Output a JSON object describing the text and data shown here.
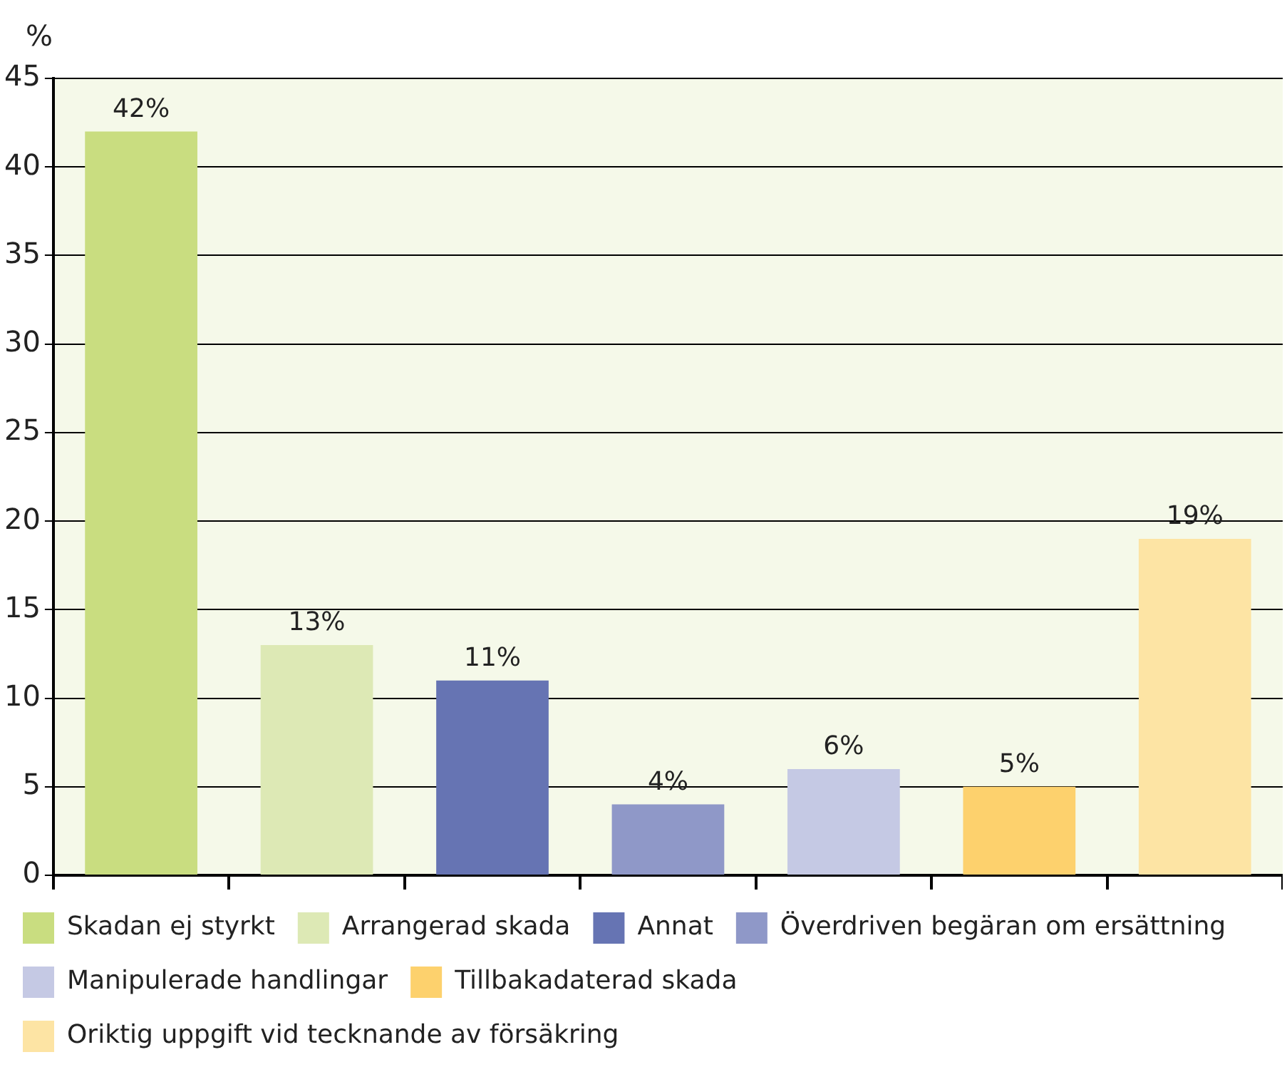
{
  "chart_data": {
    "type": "bar",
    "ylabel": "%",
    "categories": [
      null,
      null,
      null,
      null,
      null,
      null,
      null
    ],
    "series": [
      {
        "name": "Skadan ej styrkt",
        "color": "#c9dd80",
        "values": [
          42,
          null,
          null,
          null,
          null,
          null,
          null
        ],
        "value_labels": [
          "42%",
          null,
          null,
          null,
          null,
          null,
          null
        ]
      },
      {
        "name": "Arrangerad skada",
        "color": "#dde9b5",
        "values": [
          null,
          13,
          null,
          null,
          null,
          null,
          null
        ],
        "value_labels": [
          null,
          "13%",
          null,
          null,
          null,
          null,
          null
        ]
      },
      {
        "name": "Annat",
        "color": "#6674b3",
        "values": [
          null,
          null,
          11,
          null,
          null,
          null,
          null
        ],
        "value_labels": [
          null,
          null,
          "11%",
          null,
          null,
          null,
          null
        ]
      },
      {
        "name": "Överdriven begäran om ersättning",
        "color": "#8f98c8",
        "values": [
          null,
          null,
          null,
          4,
          null,
          null,
          null
        ],
        "value_labels": [
          null,
          null,
          null,
          "4%",
          null,
          null,
          null
        ]
      },
      {
        "name": "Manipulerade handlingar",
        "color": "#c5c9e4",
        "values": [
          null,
          null,
          null,
          null,
          6,
          null,
          null
        ],
        "value_labels": [
          null,
          null,
          null,
          null,
          "6%",
          null,
          null
        ]
      },
      {
        "name": "Tillbakadaterad skada",
        "color": "#fdd16d",
        "values": [
          null,
          null,
          null,
          null,
          null,
          5,
          null
        ],
        "value_labels": [
          null,
          null,
          null,
          null,
          null,
          "5%",
          null
        ]
      },
      {
        "name": "Oriktig uppgift vid tecknande av försäkring",
        "color": "#fde4a4",
        "values": [
          null,
          null,
          null,
          null,
          null,
          null,
          19
        ],
        "value_labels": [
          null,
          null,
          null,
          null,
          null,
          null,
          "19%"
        ]
      }
    ],
    "ylim": [
      0,
      45
    ],
    "yticks": [
      0,
      5,
      10,
      15,
      20,
      25,
      30,
      35,
      40,
      45
    ],
    "grid": "y",
    "legend": "bottom",
    "tick_labels": "y"
  }
}
